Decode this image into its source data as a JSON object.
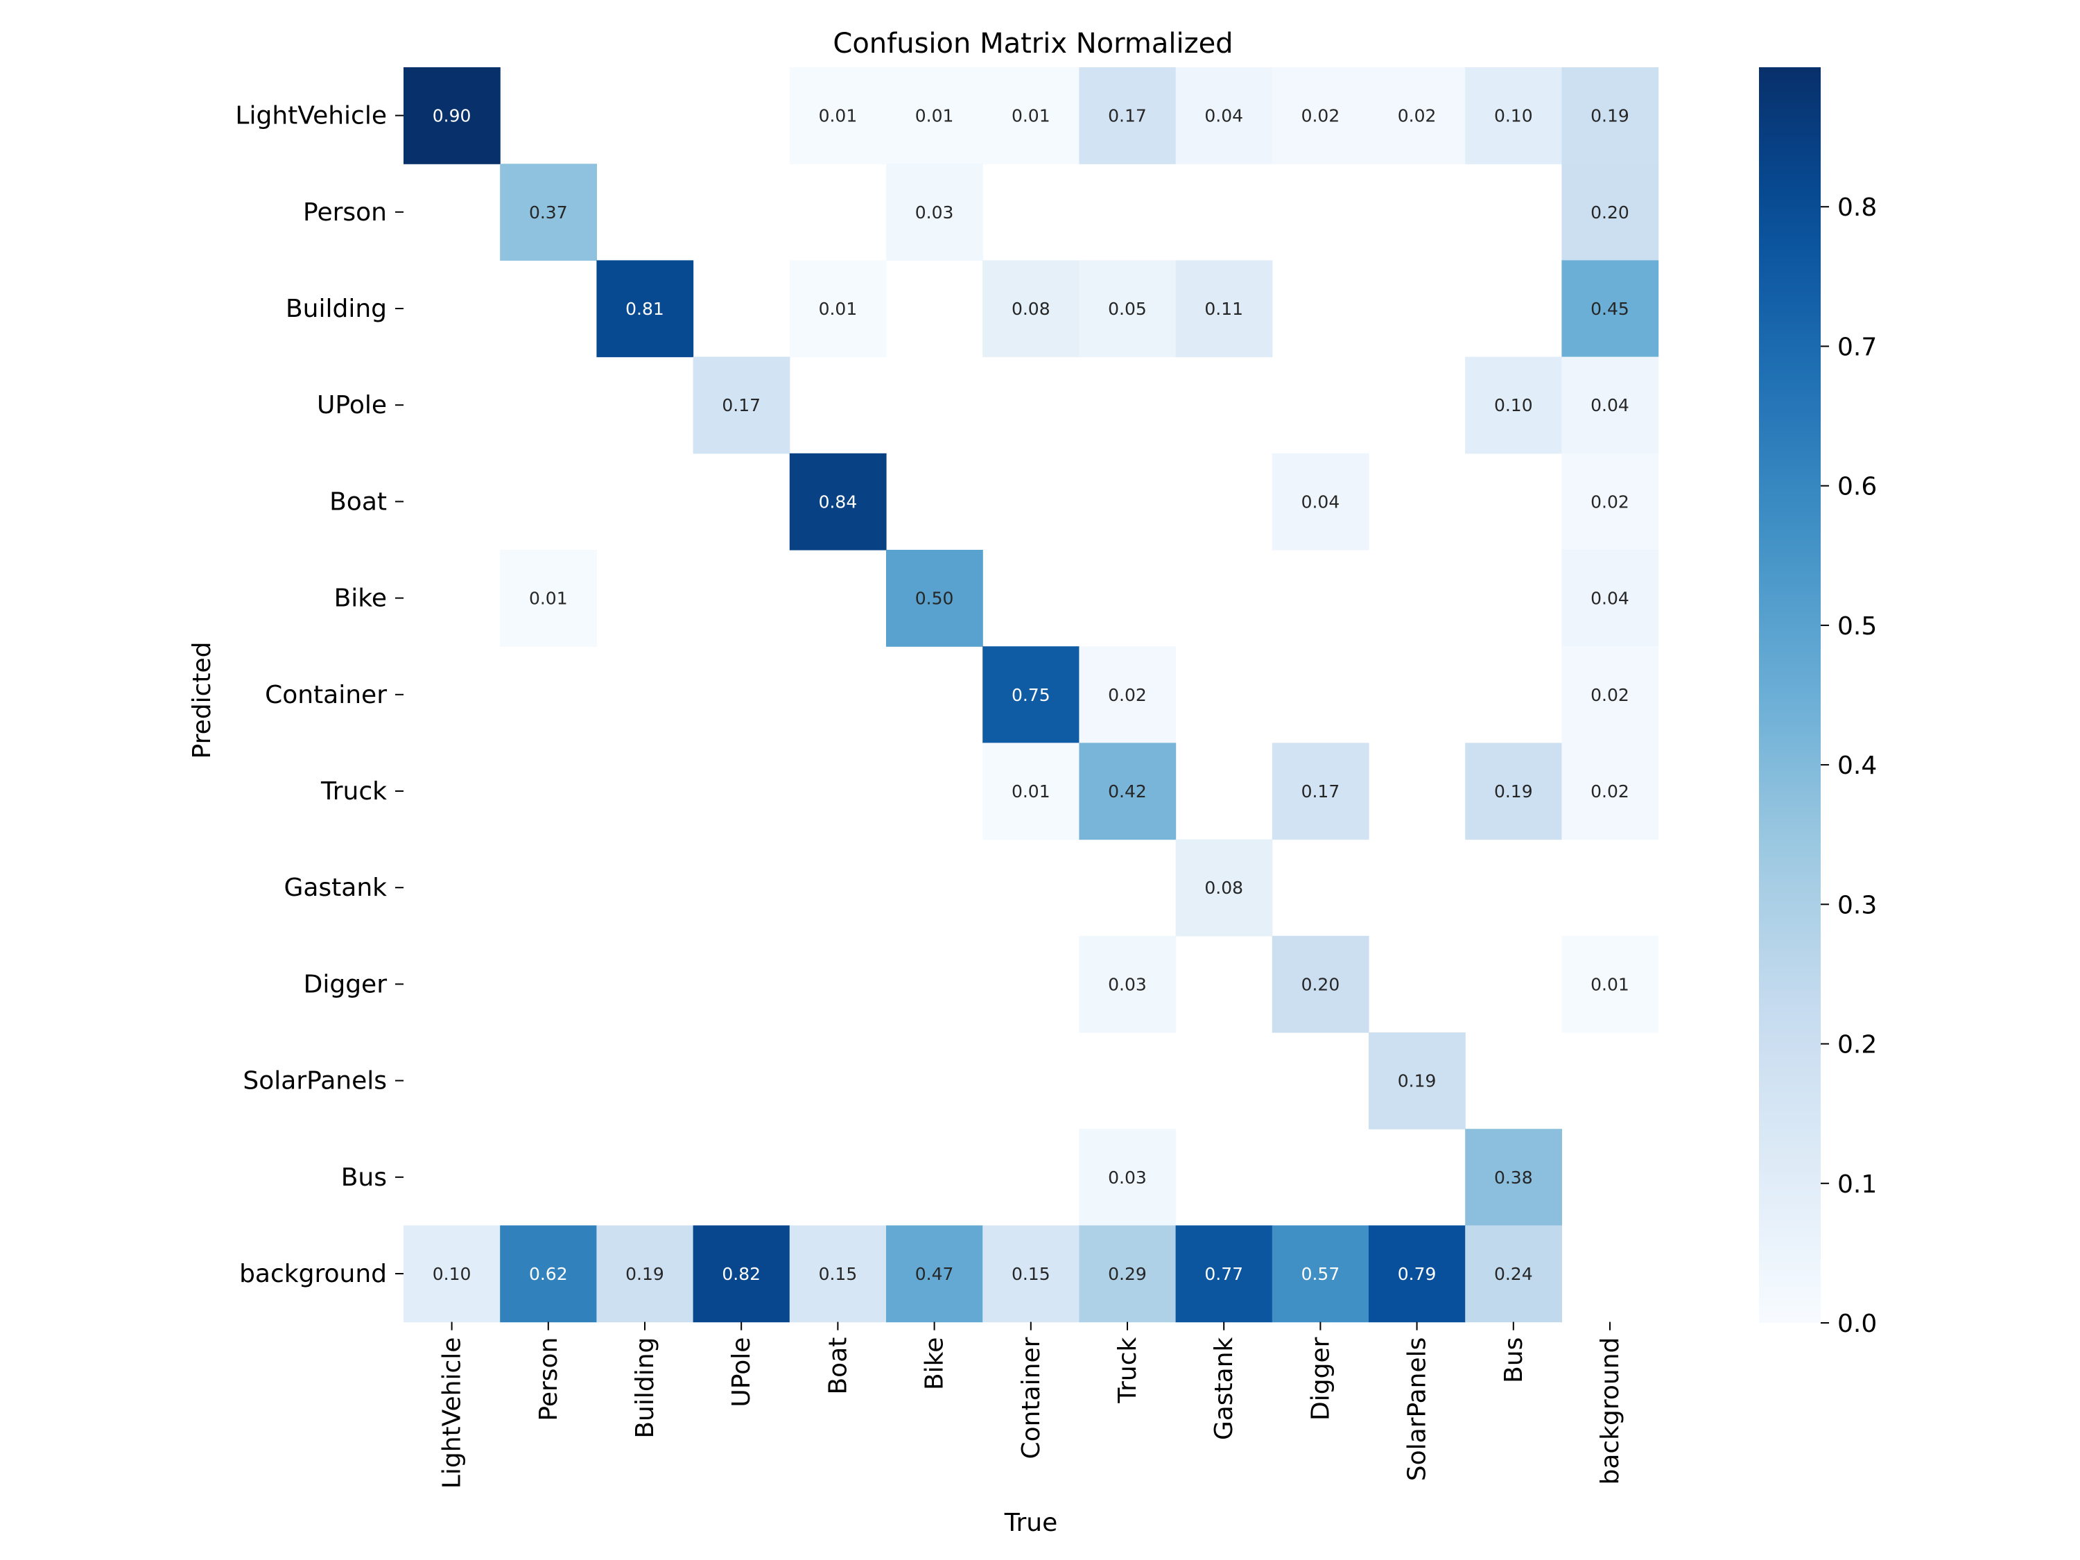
{
  "chart_data": {
    "type": "heatmap",
    "title": "Confusion Matrix Normalized",
    "xlabel": "True",
    "ylabel": "Predicted",
    "x_categories": [
      "LightVehicle",
      "Person",
      "Building",
      "UPole",
      "Boat",
      "Bike",
      "Container",
      "Truck",
      "Gastank",
      "Digger",
      "SolarPanels",
      "Bus",
      "background"
    ],
    "y_categories": [
      "LightVehicle",
      "Person",
      "Building",
      "UPole",
      "Boat",
      "Bike",
      "Container",
      "Truck",
      "Gastank",
      "Digger",
      "SolarPanels",
      "Bus",
      "background"
    ],
    "values": [
      [
        0.9,
        null,
        null,
        null,
        0.01,
        0.01,
        0.01,
        0.17,
        0.04,
        0.02,
        0.02,
        0.1,
        0.19
      ],
      [
        null,
        0.37,
        null,
        null,
        null,
        0.03,
        null,
        null,
        null,
        null,
        null,
        null,
        0.2
      ],
      [
        null,
        null,
        0.81,
        null,
        0.01,
        null,
        0.08,
        0.05,
        0.11,
        null,
        null,
        null,
        0.45
      ],
      [
        null,
        null,
        null,
        0.17,
        null,
        null,
        null,
        null,
        null,
        null,
        null,
        0.1,
        0.04
      ],
      [
        null,
        null,
        null,
        null,
        0.84,
        null,
        null,
        null,
        null,
        0.04,
        null,
        null,
        0.02
      ],
      [
        null,
        0.01,
        null,
        null,
        null,
        0.5,
        null,
        null,
        null,
        null,
        null,
        null,
        0.04
      ],
      [
        null,
        null,
        null,
        null,
        null,
        null,
        0.75,
        0.02,
        null,
        null,
        null,
        null,
        0.02
      ],
      [
        null,
        null,
        null,
        null,
        null,
        null,
        0.01,
        0.42,
        null,
        0.17,
        null,
        0.19,
        0.02
      ],
      [
        null,
        null,
        null,
        null,
        null,
        null,
        null,
        null,
        0.08,
        null,
        null,
        null,
        null
      ],
      [
        null,
        null,
        null,
        null,
        null,
        null,
        null,
        0.03,
        null,
        0.2,
        null,
        null,
        0.01
      ],
      [
        null,
        null,
        null,
        null,
        null,
        null,
        null,
        null,
        null,
        null,
        0.19,
        null,
        null
      ],
      [
        null,
        null,
        null,
        null,
        null,
        null,
        null,
        0.03,
        null,
        null,
        null,
        0.38,
        null
      ],
      [
        0.1,
        0.62,
        0.19,
        0.82,
        0.15,
        0.47,
        0.15,
        0.29,
        0.77,
        0.57,
        0.79,
        0.24,
        null
      ]
    ],
    "colormap": "Blues",
    "colorbar": {
      "range": [
        0.0,
        0.9
      ],
      "ticks": [
        "0.0",
        "0.1",
        "0.2",
        "0.3",
        "0.4",
        "0.5",
        "0.6",
        "0.7",
        "0.8"
      ]
    },
    "value_format": "2 decimals"
  }
}
